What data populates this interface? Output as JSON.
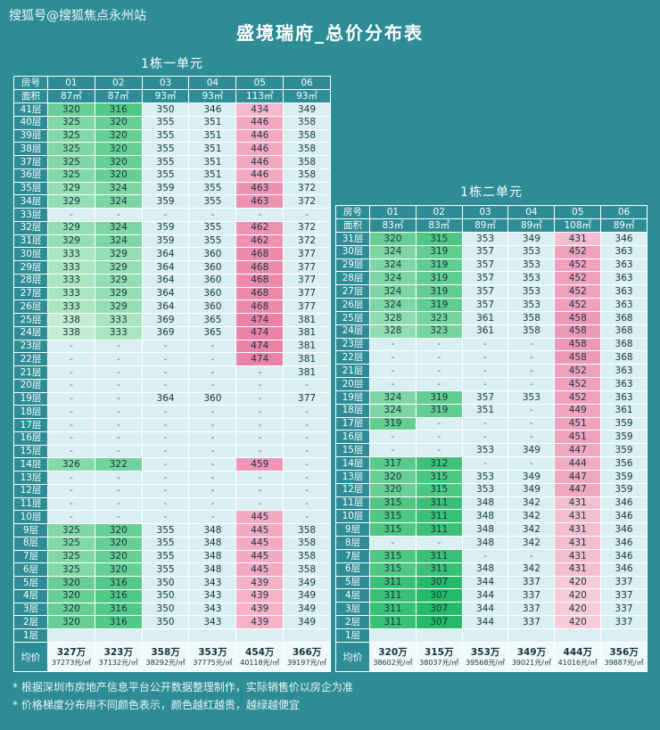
{
  "page": {
    "watermark": "搜狐号@搜狐焦点永州站",
    "title": "盛境瑞府_总价分布表",
    "notes": [
      "* 根据深圳市房地产信息平台公开数据整理制作，实际销售价以房企为准",
      "* 价格梯度分布用不同颜色表示，颜色越红越贵，越绿越便宜"
    ],
    "colors": {
      "background": "#2D8C96",
      "border": "#FFFFFF",
      "header_text": "#FFFFFF",
      "cell_text": "#17343B",
      "avg_cell_background": "#F1FAFB"
    },
    "color_scale": {
      "neutral": "#D9EFF2",
      "green_range": [
        307,
        338
      ],
      "green_dark": "#25BA68",
      "green_light": "#C3ECD2",
      "pink_threshold": 400,
      "pink_range": [
        420,
        474
      ],
      "pink_light": "#F9CBDA",
      "pink_dark": "#EA82A8"
    }
  },
  "chart_data": [
    {
      "type": "table",
      "title": "1栋一单元",
      "room_header_label": "房号",
      "area_header_label": "面积",
      "avg_label": "均价",
      "green_max": 338,
      "room_numbers": [
        "01",
        "02",
        "03",
        "04",
        "05",
        "06"
      ],
      "areas": [
        "87㎡",
        "87㎡",
        "93㎡",
        "93㎡",
        "113㎡",
        "93㎡"
      ],
      "floors": [
        {
          "floor": "41层",
          "values": [
            "320",
            "316",
            "350",
            "346",
            "434",
            "349"
          ]
        },
        {
          "floor": "40层",
          "values": [
            "325",
            "320",
            "355",
            "351",
            "446",
            "358"
          ]
        },
        {
          "floor": "39层",
          "values": [
            "325",
            "320",
            "355",
            "351",
            "446",
            "358"
          ]
        },
        {
          "floor": "38层",
          "values": [
            "325",
            "320",
            "355",
            "351",
            "446",
            "358"
          ]
        },
        {
          "floor": "37层",
          "values": [
            "325",
            "320",
            "355",
            "351",
            "446",
            "358"
          ]
        },
        {
          "floor": "36层",
          "values": [
            "325",
            "320",
            "355",
            "351",
            "446",
            "358"
          ]
        },
        {
          "floor": "35层",
          "values": [
            "329",
            "324",
            "359",
            "355",
            "463",
            "372"
          ]
        },
        {
          "floor": "34层",
          "values": [
            "329",
            "324",
            "359",
            "355",
            "463",
            "372"
          ]
        },
        {
          "floor": "33层",
          "values": [
            "-",
            "-",
            "-",
            "-",
            "-",
            "-"
          ]
        },
        {
          "floor": "32层",
          "values": [
            "329",
            "324",
            "359",
            "355",
            "462",
            "372"
          ]
        },
        {
          "floor": "31层",
          "values": [
            "329",
            "324",
            "359",
            "355",
            "462",
            "372"
          ]
        },
        {
          "floor": "30层",
          "values": [
            "333",
            "329",
            "364",
            "360",
            "468",
            "377"
          ]
        },
        {
          "floor": "29层",
          "values": [
            "333",
            "329",
            "364",
            "360",
            "468",
            "377"
          ]
        },
        {
          "floor": "28层",
          "values": [
            "333",
            "329",
            "364",
            "360",
            "468",
            "377"
          ]
        },
        {
          "floor": "27层",
          "values": [
            "333",
            "329",
            "364",
            "360",
            "468",
            "377"
          ]
        },
        {
          "floor": "26层",
          "values": [
            "333",
            "329",
            "364",
            "360",
            "468",
            "377"
          ]
        },
        {
          "floor": "25层",
          "values": [
            "338",
            "333",
            "369",
            "365",
            "474",
            "381"
          ]
        },
        {
          "floor": "24层",
          "values": [
            "338",
            "333",
            "369",
            "365",
            "474",
            "381"
          ]
        },
        {
          "floor": "23层",
          "values": [
            "-",
            "-",
            "-",
            "-",
            "474",
            "381"
          ]
        },
        {
          "floor": "22层",
          "values": [
            "-",
            "-",
            "-",
            "-",
            "474",
            "381"
          ]
        },
        {
          "floor": "21层",
          "values": [
            "-",
            "-",
            "-",
            "-",
            "-",
            "381"
          ]
        },
        {
          "floor": "20层",
          "values": [
            "-",
            "-",
            "-",
            "-",
            "-",
            "-"
          ]
        },
        {
          "floor": "19层",
          "values": [
            "-",
            "-",
            "364",
            "360",
            "-",
            "377"
          ]
        },
        {
          "floor": "18层",
          "values": [
            "-",
            "-",
            "-",
            "-",
            "-",
            "-"
          ]
        },
        {
          "floor": "17层",
          "values": [
            "-",
            "-",
            "-",
            "-",
            "-",
            "-"
          ]
        },
        {
          "floor": "16层",
          "values": [
            "-",
            "-",
            "-",
            "-",
            "-",
            "-"
          ]
        },
        {
          "floor": "15层",
          "values": [
            "-",
            "-",
            "-",
            "-",
            "-",
            "-"
          ]
        },
        {
          "floor": "14层",
          "values": [
            "326",
            "322",
            "-",
            "-",
            "459",
            "-"
          ]
        },
        {
          "floor": "13层",
          "values": [
            "-",
            "-",
            "-",
            "-",
            "-",
            "-"
          ]
        },
        {
          "floor": "12层",
          "values": [
            "-",
            "-",
            "-",
            "-",
            "-",
            "-"
          ]
        },
        {
          "floor": "11层",
          "values": [
            "-",
            "-",
            "-",
            "-",
            "-",
            "-"
          ]
        },
        {
          "floor": "10层",
          "values": [
            "-",
            "-",
            "-",
            "-",
            "445",
            "-"
          ]
        },
        {
          "floor": "9层",
          "values": [
            "325",
            "320",
            "355",
            "348",
            "445",
            "358"
          ]
        },
        {
          "floor": "8层",
          "values": [
            "325",
            "320",
            "355",
            "348",
            "445",
            "358"
          ]
        },
        {
          "floor": "7层",
          "values": [
            "325",
            "320",
            "355",
            "348",
            "445",
            "358"
          ]
        },
        {
          "floor": "6层",
          "values": [
            "325",
            "320",
            "355",
            "348",
            "445",
            "358"
          ]
        },
        {
          "floor": "5层",
          "values": [
            "320",
            "316",
            "350",
            "343",
            "439",
            "349"
          ]
        },
        {
          "floor": "4层",
          "values": [
            "320",
            "316",
            "350",
            "343",
            "439",
            "349"
          ]
        },
        {
          "floor": "3层",
          "values": [
            "320",
            "316",
            "350",
            "343",
            "439",
            "349"
          ]
        },
        {
          "floor": "2层",
          "values": [
            "320",
            "316",
            "350",
            "343",
            "439",
            "349"
          ]
        },
        {
          "floor": "1层",
          "values": [
            "",
            "",
            "",
            "",
            "",
            ""
          ]
        }
      ],
      "averages": [
        {
          "total": "327万",
          "unit": "37273元/㎡"
        },
        {
          "total": "323万",
          "unit": "37132元/㎡"
        },
        {
          "total": "358万",
          "unit": "38292元/㎡"
        },
        {
          "total": "353万",
          "unit": "37775元/㎡"
        },
        {
          "total": "454万",
          "unit": "40118元/㎡"
        },
        {
          "total": "366万",
          "unit": "39197元/㎡"
        }
      ]
    },
    {
      "type": "table",
      "title": "1栋二单元",
      "room_header_label": "房号",
      "area_header_label": "面积",
      "avg_label": "均价",
      "green_max": 330,
      "room_numbers": [
        "01",
        "02",
        "03",
        "04",
        "05",
        "06"
      ],
      "areas": [
        "83㎡",
        "83㎡",
        "89㎡",
        "89㎡",
        "108㎡",
        "89㎡"
      ],
      "floors": [
        {
          "floor": "31层",
          "values": [
            "320",
            "315",
            "353",
            "349",
            "431",
            "346"
          ]
        },
        {
          "floor": "30层",
          "values": [
            "324",
            "319",
            "357",
            "353",
            "452",
            "363"
          ]
        },
        {
          "floor": "29层",
          "values": [
            "324",
            "319",
            "357",
            "353",
            "452",
            "363"
          ]
        },
        {
          "floor": "28层",
          "values": [
            "324",
            "319",
            "357",
            "353",
            "452",
            "363"
          ]
        },
        {
          "floor": "27层",
          "values": [
            "324",
            "319",
            "357",
            "353",
            "452",
            "363"
          ]
        },
        {
          "floor": "26层",
          "values": [
            "324",
            "319",
            "357",
            "353",
            "452",
            "363"
          ]
        },
        {
          "floor": "25层",
          "values": [
            "328",
            "323",
            "361",
            "358",
            "458",
            "368"
          ]
        },
        {
          "floor": "24层",
          "values": [
            "328",
            "323",
            "361",
            "358",
            "458",
            "368"
          ]
        },
        {
          "floor": "23层",
          "values": [
            "-",
            "-",
            "-",
            "-",
            "458",
            "368"
          ]
        },
        {
          "floor": "22层",
          "values": [
            "-",
            "-",
            "-",
            "-",
            "458",
            "368"
          ]
        },
        {
          "floor": "21层",
          "values": [
            "-",
            "-",
            "-",
            "-",
            "452",
            "363"
          ]
        },
        {
          "floor": "20层",
          "values": [
            "-",
            "-",
            "-",
            "-",
            "452",
            "363"
          ]
        },
        {
          "floor": "19层",
          "values": [
            "324",
            "319",
            "357",
            "353",
            "452",
            "363"
          ]
        },
        {
          "floor": "18层",
          "values": [
            "324",
            "319",
            "351",
            "-",
            "449",
            "361"
          ]
        },
        {
          "floor": "17层",
          "values": [
            "319",
            "-",
            "-",
            "-",
            "451",
            "359"
          ]
        },
        {
          "floor": "16层",
          "values": [
            "-",
            "-",
            "-",
            "-",
            "451",
            "359"
          ]
        },
        {
          "floor": "15层",
          "values": [
            "-",
            "-",
            "353",
            "349",
            "447",
            "359"
          ]
        },
        {
          "floor": "14层",
          "values": [
            "317",
            "312",
            "-",
            "-",
            "444",
            "356"
          ]
        },
        {
          "floor": "13层",
          "values": [
            "320",
            "315",
            "353",
            "349",
            "447",
            "359"
          ]
        },
        {
          "floor": "12层",
          "values": [
            "320",
            "315",
            "353",
            "349",
            "447",
            "359"
          ]
        },
        {
          "floor": "11层",
          "values": [
            "315",
            "311",
            "348",
            "342",
            "431",
            "346"
          ]
        },
        {
          "floor": "10层",
          "values": [
            "315",
            "311",
            "348",
            "342",
            "431",
            "346"
          ]
        },
        {
          "floor": "9层",
          "values": [
            "315",
            "311",
            "348",
            "342",
            "431",
            "346"
          ]
        },
        {
          "floor": "8层",
          "values": [
            "-",
            "-",
            "348",
            "342",
            "431",
            "346"
          ]
        },
        {
          "floor": "7层",
          "values": [
            "315",
            "311",
            "-",
            "-",
            "431",
            "346"
          ]
        },
        {
          "floor": "6层",
          "values": [
            "315",
            "311",
            "348",
            "342",
            "431",
            "346"
          ]
        },
        {
          "floor": "5层",
          "values": [
            "311",
            "307",
            "344",
            "337",
            "420",
            "337"
          ]
        },
        {
          "floor": "4层",
          "values": [
            "311",
            "307",
            "344",
            "337",
            "420",
            "337"
          ]
        },
        {
          "floor": "3层",
          "values": [
            "311",
            "307",
            "344",
            "337",
            "420",
            "337"
          ]
        },
        {
          "floor": "2层",
          "values": [
            "311",
            "307",
            "344",
            "337",
            "420",
            "337"
          ]
        },
        {
          "floor": "1层",
          "values": [
            "",
            "",
            "",
            "",
            "",
            ""
          ]
        }
      ],
      "averages": [
        {
          "total": "320万",
          "unit": "38602元/㎡"
        },
        {
          "total": "315万",
          "unit": "38037元/㎡"
        },
        {
          "total": "353万",
          "unit": "39568元/㎡"
        },
        {
          "total": "349万",
          "unit": "39021元/㎡"
        },
        {
          "total": "444万",
          "unit": "41016元/㎡"
        },
        {
          "total": "356万",
          "unit": "39887元/㎡"
        }
      ]
    }
  ]
}
